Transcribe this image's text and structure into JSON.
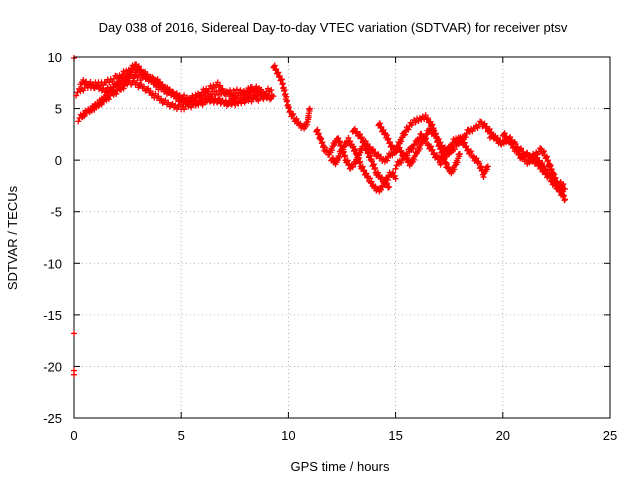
{
  "chart_data": {
    "type": "scatter",
    "title": "Day 038 of 2016, Sidereal Day-to-day VTEC variation (SDTVAR) for receiver ptsv",
    "xlabel": "GPS time / hours",
    "ylabel": "SDTVAR / TECUs",
    "xlim": [
      0,
      25
    ],
    "ylim": [
      -25,
      10
    ],
    "xticks": [
      "0",
      "5",
      "10",
      "15",
      "20",
      "25"
    ],
    "yticks": [
      "10",
      "5",
      "0",
      "-5",
      "-10",
      "-15",
      "-20",
      "-25"
    ],
    "grid": true,
    "marker": "plus",
    "series": [
      {
        "name": "SDTVAR",
        "color": "#ff0000",
        "tracks": [
          [
            [
              0.1,
              6.5
            ],
            [
              0.5,
              7.0
            ],
            [
              1.0,
              7.3
            ],
            [
              1.5,
              7.6
            ],
            [
              2.0,
              8.0
            ],
            [
              2.5,
              8.6
            ],
            [
              2.9,
              9.2
            ],
            [
              3.2,
              8.4
            ],
            [
              3.6,
              7.6
            ],
            [
              4.0,
              7.0
            ],
            [
              4.4,
              6.6
            ],
            [
              4.8,
              6.3
            ],
            [
              5.2,
              6.0
            ],
            [
              5.6,
              6.0
            ],
            [
              6.0,
              6.2
            ],
            [
              6.4,
              6.4
            ],
            [
              6.8,
              6.5
            ],
            [
              7.2,
              6.6
            ],
            [
              7.6,
              6.7
            ],
            [
              8.0,
              6.7
            ],
            [
              8.5,
              6.6
            ],
            [
              8.9,
              6.6
            ],
            [
              9.2,
              6.8
            ]
          ],
          [
            [
              0.2,
              4.0
            ],
            [
              0.6,
              4.6
            ],
            [
              1.0,
              5.2
            ],
            [
              1.4,
              5.8
            ],
            [
              1.8,
              6.4
            ],
            [
              2.2,
              7.0
            ],
            [
              2.6,
              7.6
            ],
            [
              3.0,
              7.3
            ],
            [
              3.4,
              6.8
            ],
            [
              3.8,
              6.2
            ],
            [
              4.2,
              5.7
            ],
            [
              4.6,
              5.3
            ],
            [
              5.0,
              5.1
            ],
            [
              5.4,
              5.3
            ],
            [
              5.8,
              5.6
            ],
            [
              6.2,
              5.8
            ],
            [
              6.6,
              5.7
            ],
            [
              7.0,
              5.6
            ],
            [
              7.4,
              5.7
            ],
            [
              7.8,
              5.8
            ],
            [
              8.2,
              5.9
            ],
            [
              8.6,
              6.0
            ],
            [
              9.0,
              6.0
            ],
            [
              9.3,
              6.2
            ]
          ],
          [
            [
              0.3,
              7.6
            ],
            [
              0.7,
              7.4
            ],
            [
              1.1,
              7.0
            ],
            [
              1.5,
              6.8
            ],
            [
              1.9,
              7.2
            ],
            [
              2.3,
              7.5
            ],
            [
              2.7,
              8.2
            ],
            [
              3.1,
              8.0
            ],
            [
              3.5,
              7.9
            ],
            [
              3.9,
              7.6
            ],
            [
              4.3,
              7.0
            ],
            [
              4.7,
              6.2
            ],
            [
              5.1,
              5.6
            ],
            [
              5.5,
              5.8
            ],
            [
              5.9,
              6.5
            ],
            [
              6.3,
              6.9
            ],
            [
              6.7,
              7.3
            ],
            [
              7.1,
              6.5
            ],
            [
              7.5,
              6.1
            ],
            [
              7.9,
              6.4
            ],
            [
              8.3,
              7.0
            ],
            [
              8.7,
              6.8
            ]
          ],
          [
            [
              0.4,
              4.4
            ],
            [
              0.8,
              4.9
            ],
            [
              1.2,
              5.6
            ],
            [
              1.6,
              6.5
            ],
            [
              2.0,
              7.4
            ],
            [
              2.4,
              8.0
            ],
            [
              2.8,
              8.8
            ],
            [
              3.2,
              8.5
            ],
            [
              3.6,
              7.9
            ],
            [
              4.0,
              7.3
            ],
            [
              4.4,
              6.8
            ],
            [
              4.8,
              6.3
            ],
            [
              5.2,
              5.8
            ],
            [
              5.6,
              5.5
            ],
            [
              6.0,
              5.6
            ],
            [
              6.4,
              5.9
            ],
            [
              6.8,
              5.7
            ],
            [
              7.2,
              5.5
            ],
            [
              7.6,
              5.6
            ],
            [
              8.0,
              5.9
            ],
            [
              8.4,
              6.2
            ],
            [
              8.8,
              6.3
            ],
            [
              9.2,
              6.0
            ]
          ],
          [
            [
              9.3,
              9.2
            ],
            [
              9.5,
              8.4
            ],
            [
              9.7,
              7.6
            ],
            [
              9.8,
              6.8
            ],
            [
              9.9,
              6.0
            ],
            [
              10.0,
              5.2
            ],
            [
              10.1,
              4.6
            ],
            [
              10.3,
              4.0
            ],
            [
              10.5,
              3.4
            ],
            [
              10.7,
              3.0
            ],
            [
              10.9,
              3.8
            ],
            [
              11.0,
              5.0
            ]
          ],
          [
            [
              11.3,
              3.0
            ],
            [
              11.5,
              2.0
            ],
            [
              11.7,
              1.0
            ],
            [
              11.9,
              0.6
            ],
            [
              12.1,
              1.5
            ],
            [
              12.3,
              2.2
            ],
            [
              12.5,
              1.0
            ],
            [
              12.7,
              0.0
            ],
            [
              12.9,
              -0.8
            ],
            [
              13.1,
              -0.4
            ],
            [
              13.3,
              0.6
            ],
            [
              13.5,
              1.6
            ],
            [
              13.7,
              0.8
            ],
            [
              13.9,
              -0.2
            ],
            [
              14.1,
              -1.2
            ],
            [
              14.3,
              -1.8
            ],
            [
              14.5,
              -2.2
            ],
            [
              14.7,
              -2.6
            ]
          ],
          [
            [
              12.0,
              0.2
            ],
            [
              12.2,
              -0.4
            ],
            [
              12.4,
              0.6
            ],
            [
              12.6,
              1.4
            ],
            [
              12.8,
              2.0
            ],
            [
              13.0,
              1.4
            ],
            [
              13.2,
              0.4
            ],
            [
              13.4,
              -0.6
            ],
            [
              13.6,
              -1.4
            ],
            [
              13.8,
              -2.0
            ],
            [
              14.0,
              -2.6
            ],
            [
              14.2,
              -3.0
            ],
            [
              14.4,
              -2.4
            ],
            [
              14.6,
              -1.8
            ],
            [
              14.8,
              -1.2
            ],
            [
              15.0,
              -1.8
            ]
          ],
          [
            [
              13.0,
              3.0
            ],
            [
              13.3,
              2.4
            ],
            [
              13.6,
              1.6
            ],
            [
              13.9,
              1.0
            ],
            [
              14.2,
              0.4
            ],
            [
              14.5,
              0.0
            ],
            [
              14.8,
              0.6
            ],
            [
              15.1,
              1.2
            ],
            [
              15.4,
              0.4
            ],
            [
              15.7,
              -0.4
            ],
            [
              16.0,
              0.8
            ],
            [
              16.3,
              2.0
            ],
            [
              16.6,
              3.0
            ],
            [
              16.9,
              2.2
            ],
            [
              17.2,
              1.2
            ],
            [
              17.5,
              0.6
            ],
            [
              17.8,
              1.4
            ],
            [
              18.1,
              2.0
            ],
            [
              18.4,
              2.8
            ],
            [
              18.7,
              3.2
            ],
            [
              19.0,
              3.6
            ],
            [
              19.3,
              3.0
            ],
            [
              19.6,
              2.2
            ],
            [
              19.9,
              1.6
            ]
          ],
          [
            [
              14.2,
              3.6
            ],
            [
              14.4,
              2.8
            ],
            [
              14.6,
              2.2
            ],
            [
              14.8,
              1.4
            ],
            [
              15.0,
              0.8
            ],
            [
              15.2,
              1.8
            ],
            [
              15.4,
              2.6
            ],
            [
              15.6,
              3.2
            ],
            [
              15.8,
              3.6
            ],
            [
              16.0,
              3.8
            ],
            [
              16.2,
              4.0
            ],
            [
              16.4,
              4.2
            ],
            [
              16.6,
              3.8
            ],
            [
              16.8,
              2.8
            ],
            [
              17.0,
              1.6
            ],
            [
              17.2,
              0.4
            ],
            [
              17.4,
              -0.6
            ],
            [
              17.6,
              -1.2
            ],
            [
              17.8,
              -0.4
            ],
            [
              18.0,
              0.6
            ]
          ],
          [
            [
              15.0,
              -0.6
            ],
            [
              15.3,
              0.0
            ],
            [
              15.6,
              0.8
            ],
            [
              15.9,
              1.6
            ],
            [
              16.2,
              2.4
            ],
            [
              16.5,
              1.6
            ],
            [
              16.8,
              0.6
            ],
            [
              17.1,
              -0.2
            ],
            [
              17.4,
              0.8
            ],
            [
              17.7,
              1.8
            ],
            [
              18.0,
              2.2
            ],
            [
              18.3,
              1.2
            ],
            [
              18.6,
              0.4
            ],
            [
              18.9,
              -0.4
            ],
            [
              19.1,
              -1.4
            ],
            [
              19.3,
              -0.6
            ]
          ],
          [
            [
              19.4,
              2.4
            ],
            [
              19.7,
              2.0
            ],
            [
              20.0,
              1.6
            ],
            [
              20.3,
              2.2
            ],
            [
              20.6,
              1.4
            ],
            [
              20.9,
              0.8
            ],
            [
              21.2,
              0.4
            ],
            [
              21.5,
              0.2
            ],
            [
              21.8,
              -0.4
            ],
            [
              22.1,
              -1.2
            ],
            [
              22.4,
              -2.0
            ],
            [
              22.6,
              -2.8
            ],
            [
              22.8,
              -3.4
            ]
          ],
          [
            [
              20.0,
              2.6
            ],
            [
              20.3,
              1.8
            ],
            [
              20.6,
              1.0
            ],
            [
              20.9,
              0.2
            ],
            [
              21.2,
              -0.2
            ],
            [
              21.5,
              0.6
            ],
            [
              21.8,
              1.0
            ],
            [
              22.0,
              0.4
            ],
            [
              22.2,
              -0.6
            ],
            [
              22.4,
              -1.6
            ],
            [
              22.6,
              -2.4
            ],
            [
              22.8,
              -3.2
            ],
            [
              22.9,
              -3.8
            ]
          ],
          [
            [
              21.0,
              0.6
            ],
            [
              21.3,
              0.2
            ],
            [
              21.6,
              -0.4
            ],
            [
              21.9,
              -1.0
            ],
            [
              22.2,
              -1.8
            ],
            [
              22.5,
              -2.6
            ],
            [
              22.7,
              -2.2
            ],
            [
              22.9,
              -2.8
            ]
          ],
          [
            [
              0.0,
              -16.8
            ],
            [
              0.0,
              -20.4
            ],
            [
              0.0,
              -20.8
            ],
            [
              0.0,
              9.9
            ]
          ]
        ]
      }
    ]
  }
}
